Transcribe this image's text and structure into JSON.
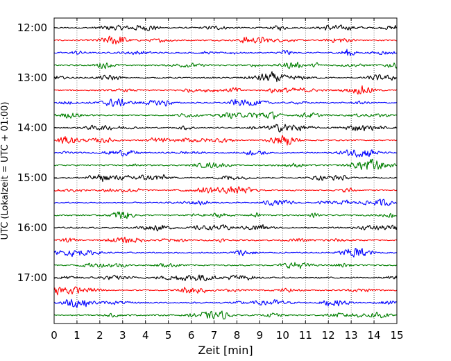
{
  "chart_data": {
    "type": "line",
    "subtype": "helicorder",
    "title": "",
    "xlabel": "Zeit  [min]",
    "ylabel": "UTC (Lokalzeit = UTC + 01:00)",
    "xlim": [
      0,
      15
    ],
    "x_ticks": [
      0,
      1,
      2,
      3,
      4,
      5,
      6,
      7,
      8,
      9,
      10,
      11,
      12,
      13,
      14,
      15
    ],
    "x_tick_labels": [
      "0",
      "1",
      "2",
      "3",
      "4",
      "5",
      "6",
      "7",
      "8",
      "9",
      "10",
      "11",
      "12",
      "13",
      "14",
      "15"
    ],
    "vertical_grid": "dotted",
    "row_interval_minutes": 15,
    "y_ticks": [
      "12:00",
      "13:00",
      "14:00",
      "15:00",
      "16:00",
      "17:00"
    ],
    "trace_colors": [
      "#000000",
      "#ff0000",
      "#0000ff",
      "#007f00"
    ],
    "rows": [
      {
        "start": "12:00",
        "color": "#000000"
      },
      {
        "start": "12:15",
        "color": "#ff0000"
      },
      {
        "start": "12:30",
        "color": "#0000ff"
      },
      {
        "start": "12:45",
        "color": "#007f00"
      },
      {
        "start": "13:00",
        "color": "#000000"
      },
      {
        "start": "13:15",
        "color": "#ff0000"
      },
      {
        "start": "13:30",
        "color": "#0000ff"
      },
      {
        "start": "13:45",
        "color": "#007f00"
      },
      {
        "start": "14:00",
        "color": "#000000"
      },
      {
        "start": "14:15",
        "color": "#ff0000"
      },
      {
        "start": "14:30",
        "color": "#0000ff"
      },
      {
        "start": "14:45",
        "color": "#007f00"
      },
      {
        "start": "15:00",
        "color": "#000000"
      },
      {
        "start": "15:15",
        "color": "#ff0000"
      },
      {
        "start": "15:30",
        "color": "#0000ff"
      },
      {
        "start": "15:45",
        "color": "#007f00"
      },
      {
        "start": "16:00",
        "color": "#000000"
      },
      {
        "start": "16:15",
        "color": "#ff0000"
      },
      {
        "start": "16:30",
        "color": "#0000ff"
      },
      {
        "start": "16:45",
        "color": "#007f00"
      },
      {
        "start": "17:00",
        "color": "#000000"
      },
      {
        "start": "17:15",
        "color": "#ff0000"
      },
      {
        "start": "17:30",
        "color": "#0000ff"
      },
      {
        "start": "17:45",
        "color": "#007f00"
      }
    ]
  }
}
